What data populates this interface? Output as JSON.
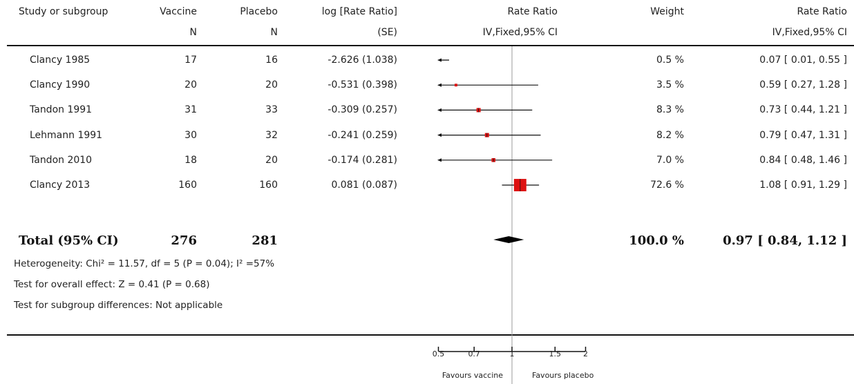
{
  "header": {
    "study": "Study or subgroup",
    "vaccine": "Vaccine",
    "vaccine_sub": "N",
    "placebo": "Placebo",
    "placebo_sub": "N",
    "logrr": "log [Rate Ratio]",
    "logrr_sub": "(SE)",
    "plot": "Rate Ratio",
    "plot_sub": "IV,Fixed,95% CI",
    "weight": "Weight",
    "rr": "Rate Ratio",
    "rr_sub": "IV,Fixed,95% CI"
  },
  "total": {
    "label": "Total (95% CI)",
    "vaccine_n": "276",
    "placebo_n": "281",
    "weight": "100.0 %",
    "rr": "0.97 [ 0.84, 1.12 ]"
  },
  "notes": {
    "heterogeneity": "Heterogeneity: Chi² = 11.57, df = 5 (P = 0.04); I² =57%",
    "overall": "Test for overall effect: Z = 0.41 (P = 0.68)",
    "subgroup": "Test for subgroup differences: Not applicable"
  },
  "axis": {
    "ticks": [
      "0.5",
      "0.7",
      "1",
      "1.5",
      "2"
    ],
    "favours_left": "Favours vaccine",
    "favours_right": "Favours placebo"
  },
  "colors": {
    "marker": "#dd1111",
    "diamond": "#000000",
    "line": "#111111",
    "reference": "#999999"
  },
  "chart_data": {
    "type": "forest",
    "scale": "log",
    "xlim": [
      0.5,
      2
    ],
    "reference": 1,
    "ticks": [
      0.5,
      0.7,
      1,
      1.5,
      2
    ],
    "studies": [
      {
        "name": "Clancy 1985",
        "vaccine_n": "17",
        "placebo_n": "16",
        "logrr_se": "-2.626 (1.038)",
        "weight_label": "0.5 %",
        "rr_label": "0.07 [ 0.01, 0.55 ]",
        "rr": 0.07,
        "lo": 0.01,
        "hi": 0.55,
        "weight": 0.5
      },
      {
        "name": "Clancy 1990",
        "vaccine_n": "20",
        "placebo_n": "20",
        "logrr_se": "-0.531 (0.398)",
        "weight_label": "3.5 %",
        "rr_label": "0.59 [ 0.27, 1.28 ]",
        "rr": 0.59,
        "lo": 0.27,
        "hi": 1.28,
        "weight": 3.5
      },
      {
        "name": "Tandon 1991",
        "vaccine_n": "31",
        "placebo_n": "33",
        "logrr_se": "-0.309 (0.257)",
        "weight_label": "8.3 %",
        "rr_label": "0.73 [ 0.44, 1.21 ]",
        "rr": 0.73,
        "lo": 0.44,
        "hi": 1.21,
        "weight": 8.3
      },
      {
        "name": "Lehmann 1991",
        "vaccine_n": "30",
        "placebo_n": "32",
        "logrr_se": "-0.241 (0.259)",
        "weight_label": "8.2 %",
        "rr_label": "0.79 [ 0.47, 1.31 ]",
        "rr": 0.79,
        "lo": 0.47,
        "hi": 1.31,
        "weight": 8.2
      },
      {
        "name": "Tandon 2010",
        "vaccine_n": "18",
        "placebo_n": "20",
        "logrr_se": "-0.174 (0.281)",
        "weight_label": "7.0 %",
        "rr_label": "0.84 [ 0.48, 1.46 ]",
        "rr": 0.84,
        "lo": 0.48,
        "hi": 1.46,
        "weight": 7.0
      },
      {
        "name": "Clancy 2013",
        "vaccine_n": "160",
        "placebo_n": "160",
        "logrr_se": "0.081 (0.087)",
        "weight_label": "72.6 %",
        "rr_label": "1.08 [ 0.91, 1.29 ]",
        "rr": 1.08,
        "lo": 0.91,
        "hi": 1.29,
        "weight": 72.6
      }
    ],
    "pooled": {
      "rr": 0.97,
      "lo": 0.84,
      "hi": 1.12
    }
  }
}
